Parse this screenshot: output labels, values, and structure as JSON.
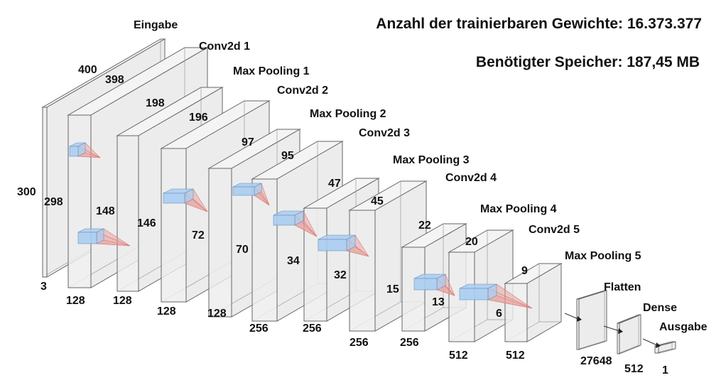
{
  "header": {
    "params": "Anzahl der trainierbaren Gewichte: 16.373.377",
    "memory": "Benötigter Speicher: 187,45 MB"
  },
  "layers": [
    {
      "name": "Eingabe",
      "height": "300",
      "width": "400",
      "depth": "3"
    },
    {
      "name": "Conv2d 1",
      "height": "298",
      "width": "398",
      "depth": "128"
    },
    {
      "name": "Max Pooling 1",
      "height": "148",
      "width": "198",
      "depth": "128"
    },
    {
      "name": "Conv2d 2",
      "height": "146",
      "width": "196",
      "depth": "128"
    },
    {
      "name": "Max Pooling 2",
      "height": "72",
      "width": "97",
      "depth": "128"
    },
    {
      "name": "Conv2d 3",
      "height": "70",
      "width": "95",
      "depth": "256"
    },
    {
      "name": "Max Pooling 3",
      "height": "34",
      "width": "47",
      "depth": "256"
    },
    {
      "name": "Conv2d 4",
      "height": "32",
      "width": "45",
      "depth": "256"
    },
    {
      "name": "Max Pooling 4",
      "height": "15",
      "width": "22",
      "depth": "256"
    },
    {
      "name": "Conv2d 5",
      "height": "13",
      "width": "20",
      "depth": "512"
    },
    {
      "name": "Max Pooling 5",
      "height": "6",
      "width": "9",
      "depth": "512"
    },
    {
      "name": "Flatten",
      "depth": "27648"
    },
    {
      "name": "Dense",
      "depth": "512"
    },
    {
      "name": "Ausgabe",
      "depth": "1"
    }
  ],
  "colors": {
    "kernel_blue": "#a9cdf2",
    "kernel_red": "#e59a94",
    "edge": "#666666"
  }
}
